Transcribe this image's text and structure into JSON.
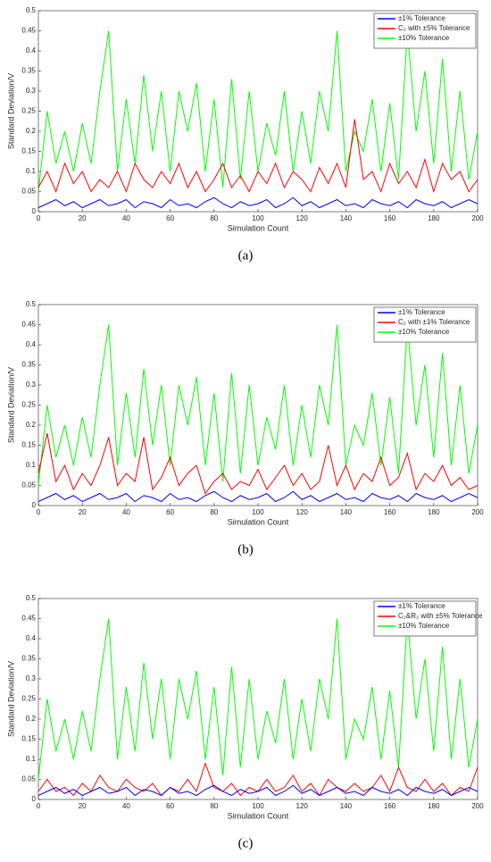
{
  "chart_data": [
    {
      "type": "line",
      "caption": "(a)",
      "xlabel": "Simulation Count",
      "ylabel": "Standard Deviation/V",
      "xlim": [
        0,
        200
      ],
      "ylim": [
        0,
        0.5
      ],
      "xticks": [
        0,
        20,
        40,
        60,
        80,
        100,
        120,
        140,
        160,
        180,
        200
      ],
      "yticks": [
        0,
        0.05,
        0.1,
        0.15,
        0.2,
        0.25,
        0.3,
        0.35,
        0.4,
        0.45,
        0.5
      ],
      "legend": "upper right",
      "x": [
        0,
        4,
        8,
        12,
        16,
        20,
        24,
        28,
        32,
        36,
        40,
        44,
        48,
        52,
        56,
        60,
        64,
        68,
        72,
        76,
        80,
        84,
        88,
        92,
        96,
        100,
        104,
        108,
        112,
        116,
        120,
        124,
        128,
        132,
        136,
        140,
        144,
        148,
        152,
        156,
        160,
        164,
        168,
        172,
        176,
        180,
        184,
        188,
        192,
        196,
        200
      ],
      "series": [
        {
          "name": "±1% Tolerance",
          "color": "#0000ff",
          "values": [
            0.01,
            0.02,
            0.03,
            0.015,
            0.025,
            0.01,
            0.02,
            0.03,
            0.015,
            0.02,
            0.03,
            0.01,
            0.025,
            0.02,
            0.01,
            0.03,
            0.015,
            0.02,
            0.01,
            0.025,
            0.035,
            0.02,
            0.01,
            0.025,
            0.015,
            0.02,
            0.03,
            0.01,
            0.02,
            0.035,
            0.015,
            0.025,
            0.01,
            0.02,
            0.03,
            0.015,
            0.02,
            0.01,
            0.03,
            0.02,
            0.015,
            0.025,
            0.01,
            0.03,
            0.02,
            0.015,
            0.025,
            0.01,
            0.02,
            0.03,
            0.02
          ]
        },
        {
          "name": "C₂ with ±5% Tolerance",
          "color": "#ff0000",
          "values": [
            0.06,
            0.1,
            0.05,
            0.12,
            0.07,
            0.1,
            0.05,
            0.08,
            0.06,
            0.1,
            0.05,
            0.12,
            0.08,
            0.06,
            0.1,
            0.07,
            0.12,
            0.06,
            0.1,
            0.05,
            0.08,
            0.12,
            0.06,
            0.09,
            0.05,
            0.1,
            0.07,
            0.12,
            0.06,
            0.1,
            0.08,
            0.05,
            0.11,
            0.07,
            0.12,
            0.06,
            0.23,
            0.08,
            0.1,
            0.05,
            0.12,
            0.07,
            0.1,
            0.06,
            0.13,
            0.05,
            0.12,
            0.08,
            0.1,
            0.05,
            0.08
          ]
        },
        {
          "name": "±10% Tolerance",
          "color": "#00ff00",
          "values": [
            0.05,
            0.25,
            0.12,
            0.2,
            0.1,
            0.22,
            0.12,
            0.3,
            0.45,
            0.1,
            0.28,
            0.12,
            0.34,
            0.15,
            0.3,
            0.1,
            0.3,
            0.2,
            0.32,
            0.1,
            0.28,
            0.06,
            0.33,
            0.08,
            0.3,
            0.1,
            0.22,
            0.14,
            0.3,
            0.1,
            0.25,
            0.12,
            0.3,
            0.2,
            0.45,
            0.1,
            0.2,
            0.15,
            0.28,
            0.1,
            0.27,
            0.08,
            0.45,
            0.2,
            0.35,
            0.12,
            0.38,
            0.1,
            0.3,
            0.08,
            0.2
          ]
        }
      ]
    },
    {
      "type": "line",
      "caption": "(b)",
      "xlabel": "Simulation Count",
      "ylabel": "Standard Deviation/V",
      "xlim": [
        0,
        200
      ],
      "ylim": [
        0,
        0.5
      ],
      "xticks": [
        0,
        20,
        40,
        60,
        80,
        100,
        120,
        140,
        160,
        180,
        200
      ],
      "yticks": [
        0,
        0.05,
        0.1,
        0.15,
        0.2,
        0.25,
        0.3,
        0.35,
        0.4,
        0.45,
        0.5
      ],
      "legend": "upper right",
      "x": [
        0,
        4,
        8,
        12,
        16,
        20,
        24,
        28,
        32,
        36,
        40,
        44,
        48,
        52,
        56,
        60,
        64,
        68,
        72,
        76,
        80,
        84,
        88,
        92,
        96,
        100,
        104,
        108,
        112,
        116,
        120,
        124,
        128,
        132,
        136,
        140,
        144,
        148,
        152,
        156,
        160,
        164,
        168,
        172,
        176,
        180,
        184,
        188,
        192,
        196,
        200
      ],
      "series": [
        {
          "name": "±1% Tolerance",
          "color": "#0000ff",
          "values": [
            0.01,
            0.02,
            0.03,
            0.015,
            0.025,
            0.01,
            0.02,
            0.03,
            0.015,
            0.02,
            0.03,
            0.01,
            0.025,
            0.02,
            0.01,
            0.03,
            0.015,
            0.02,
            0.01,
            0.025,
            0.035,
            0.02,
            0.01,
            0.025,
            0.015,
            0.02,
            0.03,
            0.01,
            0.02,
            0.035,
            0.015,
            0.025,
            0.01,
            0.02,
            0.03,
            0.015,
            0.02,
            0.01,
            0.03,
            0.02,
            0.015,
            0.025,
            0.01,
            0.03,
            0.02,
            0.015,
            0.025,
            0.01,
            0.02,
            0.03,
            0.02
          ]
        },
        {
          "name": "C₂ with ±1% Tolerance",
          "color": "#ff0000",
          "values": [
            0.08,
            0.18,
            0.06,
            0.1,
            0.04,
            0.08,
            0.05,
            0.1,
            0.17,
            0.05,
            0.08,
            0.06,
            0.17,
            0.04,
            0.07,
            0.12,
            0.05,
            0.08,
            0.1,
            0.03,
            0.06,
            0.08,
            0.04,
            0.06,
            0.05,
            0.09,
            0.04,
            0.07,
            0.1,
            0.05,
            0.08,
            0.04,
            0.06,
            0.15,
            0.05,
            0.1,
            0.04,
            0.08,
            0.06,
            0.12,
            0.05,
            0.07,
            0.13,
            0.04,
            0.08,
            0.06,
            0.1,
            0.05,
            0.07,
            0.04,
            0.05
          ]
        },
        {
          "name": "±10% Tolerance",
          "color": "#00ff00",
          "values": [
            0.05,
            0.25,
            0.12,
            0.2,
            0.1,
            0.22,
            0.12,
            0.3,
            0.45,
            0.1,
            0.28,
            0.12,
            0.34,
            0.15,
            0.3,
            0.1,
            0.3,
            0.2,
            0.32,
            0.1,
            0.28,
            0.06,
            0.33,
            0.08,
            0.3,
            0.1,
            0.22,
            0.14,
            0.3,
            0.1,
            0.25,
            0.12,
            0.3,
            0.2,
            0.45,
            0.1,
            0.2,
            0.15,
            0.28,
            0.1,
            0.27,
            0.08,
            0.45,
            0.2,
            0.35,
            0.12,
            0.38,
            0.1,
            0.3,
            0.08,
            0.2
          ]
        }
      ]
    },
    {
      "type": "line",
      "caption": "(c)",
      "xlabel": "Simulation Count",
      "ylabel": "Standard Deviation/V",
      "xlim": [
        0,
        200
      ],
      "ylim": [
        0,
        0.5
      ],
      "xticks": [
        0,
        20,
        40,
        60,
        80,
        100,
        120,
        140,
        160,
        180,
        200
      ],
      "yticks": [
        0,
        0.05,
        0.1,
        0.15,
        0.2,
        0.25,
        0.3,
        0.35,
        0.4,
        0.45,
        0.5
      ],
      "legend": "upper right",
      "x": [
        0,
        4,
        8,
        12,
        16,
        20,
        24,
        28,
        32,
        36,
        40,
        44,
        48,
        52,
        56,
        60,
        64,
        68,
        72,
        76,
        80,
        84,
        88,
        92,
        96,
        100,
        104,
        108,
        112,
        116,
        120,
        124,
        128,
        132,
        136,
        140,
        144,
        148,
        152,
        156,
        160,
        164,
        168,
        172,
        176,
        180,
        184,
        188,
        192,
        196,
        200
      ],
      "series": [
        {
          "name": "±1% Tolerance",
          "color": "#0000ff",
          "values": [
            0.01,
            0.02,
            0.03,
            0.015,
            0.025,
            0.01,
            0.02,
            0.03,
            0.015,
            0.02,
            0.03,
            0.01,
            0.025,
            0.02,
            0.01,
            0.03,
            0.015,
            0.02,
            0.01,
            0.025,
            0.035,
            0.02,
            0.01,
            0.025,
            0.015,
            0.02,
            0.03,
            0.01,
            0.02,
            0.035,
            0.015,
            0.025,
            0.01,
            0.02,
            0.03,
            0.015,
            0.02,
            0.01,
            0.03,
            0.02,
            0.015,
            0.025,
            0.01,
            0.03,
            0.02,
            0.015,
            0.025,
            0.01,
            0.02,
            0.03,
            0.02
          ]
        },
        {
          "name": "C₂&R₂ with ±5% Tolerance",
          "color": "#ff0000",
          "values": [
            0.02,
            0.05,
            0.02,
            0.03,
            0.01,
            0.04,
            0.02,
            0.06,
            0.03,
            0.02,
            0.05,
            0.03,
            0.02,
            0.04,
            0.01,
            0.03,
            0.02,
            0.05,
            0.02,
            0.09,
            0.03,
            0.02,
            0.04,
            0.01,
            0.03,
            0.02,
            0.05,
            0.02,
            0.03,
            0.06,
            0.02,
            0.04,
            0.01,
            0.05,
            0.03,
            0.02,
            0.04,
            0.02,
            0.03,
            0.06,
            0.02,
            0.08,
            0.03,
            0.02,
            0.05,
            0.02,
            0.04,
            0.01,
            0.03,
            0.02,
            0.08
          ]
        },
        {
          "name": "±10% Tolerance",
          "color": "#00ff00",
          "values": [
            0.05,
            0.25,
            0.12,
            0.2,
            0.1,
            0.22,
            0.12,
            0.3,
            0.45,
            0.1,
            0.28,
            0.12,
            0.34,
            0.15,
            0.3,
            0.1,
            0.3,
            0.2,
            0.32,
            0.1,
            0.28,
            0.06,
            0.33,
            0.08,
            0.3,
            0.1,
            0.22,
            0.14,
            0.3,
            0.1,
            0.25,
            0.12,
            0.3,
            0.2,
            0.45,
            0.1,
            0.2,
            0.15,
            0.28,
            0.1,
            0.27,
            0.08,
            0.45,
            0.2,
            0.35,
            0.12,
            0.38,
            0.1,
            0.3,
            0.08,
            0.2
          ]
        }
      ]
    }
  ]
}
